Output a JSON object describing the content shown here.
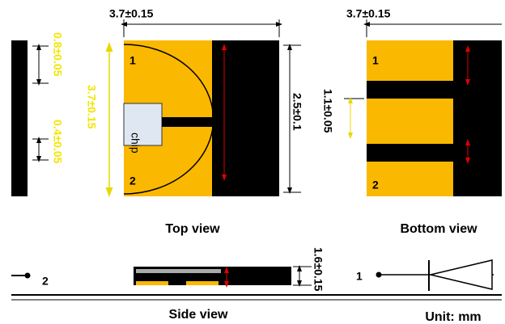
{
  "dimensions": {
    "top_width": "3.7±0.15",
    "bottom_width": "3.7±0.15",
    "pad_height": "0.8±0.05",
    "gap_height": "0.4±0.05",
    "height": "3.7±0.15",
    "inner_height": "2.5±0.1",
    "bottom_gap": "1.1±0.05",
    "thickness": "1.6±0.15"
  },
  "top_view": {
    "title": "Top view",
    "pin_1": "1",
    "pin_2": "2",
    "chip": "chip"
  },
  "bottom_view": {
    "title": "Bottom view",
    "pin_1": "1",
    "pin_2": "2"
  },
  "side_view": {
    "title": "Side view",
    "pin_1": "1",
    "pin_2": "2"
  },
  "unit": "Unit: mm"
}
